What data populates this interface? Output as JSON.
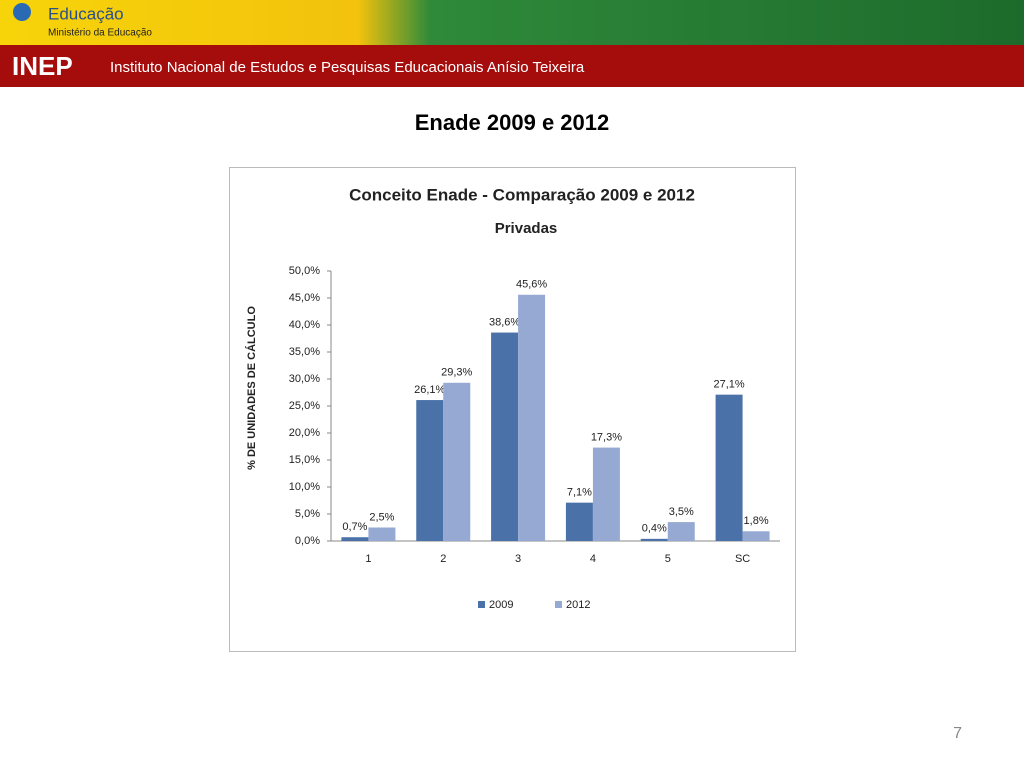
{
  "header": {
    "brand": "Educação",
    "ministry": "Ministério da Educação",
    "logo": "INEP",
    "institute": "Instituto Nacional de Estudos e Pesquisas Educacionais Anísio Teixeira"
  },
  "slide_title": "Enade 2009 e 2012",
  "page_number": 7,
  "chart_data": {
    "type": "bar",
    "title": "Conceito Enade - Comparação  2009 e 2012",
    "subtitle": "Privadas",
    "y_label": "% DE UNIDADES DE CÁLCULO",
    "categories": [
      "1",
      "2",
      "3",
      "4",
      "5",
      "SC"
    ],
    "series": [
      {
        "name": "2009",
        "color": "#4a72a8",
        "values": [
          0.7,
          26.1,
          38.6,
          7.1,
          0.4,
          27.1
        ],
        "value_labels": [
          "0,7%",
          "26,1%",
          "38,6%",
          "7,1%",
          "0,4%",
          "27,1%"
        ]
      },
      {
        "name": "2012",
        "color": "#95a9d3",
        "values": [
          2.5,
          29.3,
          45.6,
          17.3,
          3.5,
          1.8
        ],
        "value_labels": [
          "2,5%",
          "29,3%",
          "45,6%",
          "17,3%",
          "3,5%",
          "1,8%"
        ]
      }
    ],
    "ylim": [
      0,
      50
    ],
    "yticks": [
      {
        "value": 0,
        "label": "0,0%"
      },
      {
        "value": 5,
        "label": "5,0%"
      },
      {
        "value": 10,
        "label": "10,0%"
      },
      {
        "value": 15,
        "label": "15,0%"
      },
      {
        "value": 20,
        "label": "20,0%"
      },
      {
        "value": 25,
        "label": "25,0%"
      },
      {
        "value": 30,
        "label": "30,0%"
      },
      {
        "value": 35,
        "label": "35,0%"
      },
      {
        "value": 40,
        "label": "40,0%"
      },
      {
        "value": 45,
        "label": "45,0%"
      },
      {
        "value": 50,
        "label": "50,0%"
      }
    ],
    "grid": false,
    "legend": "bottom"
  }
}
